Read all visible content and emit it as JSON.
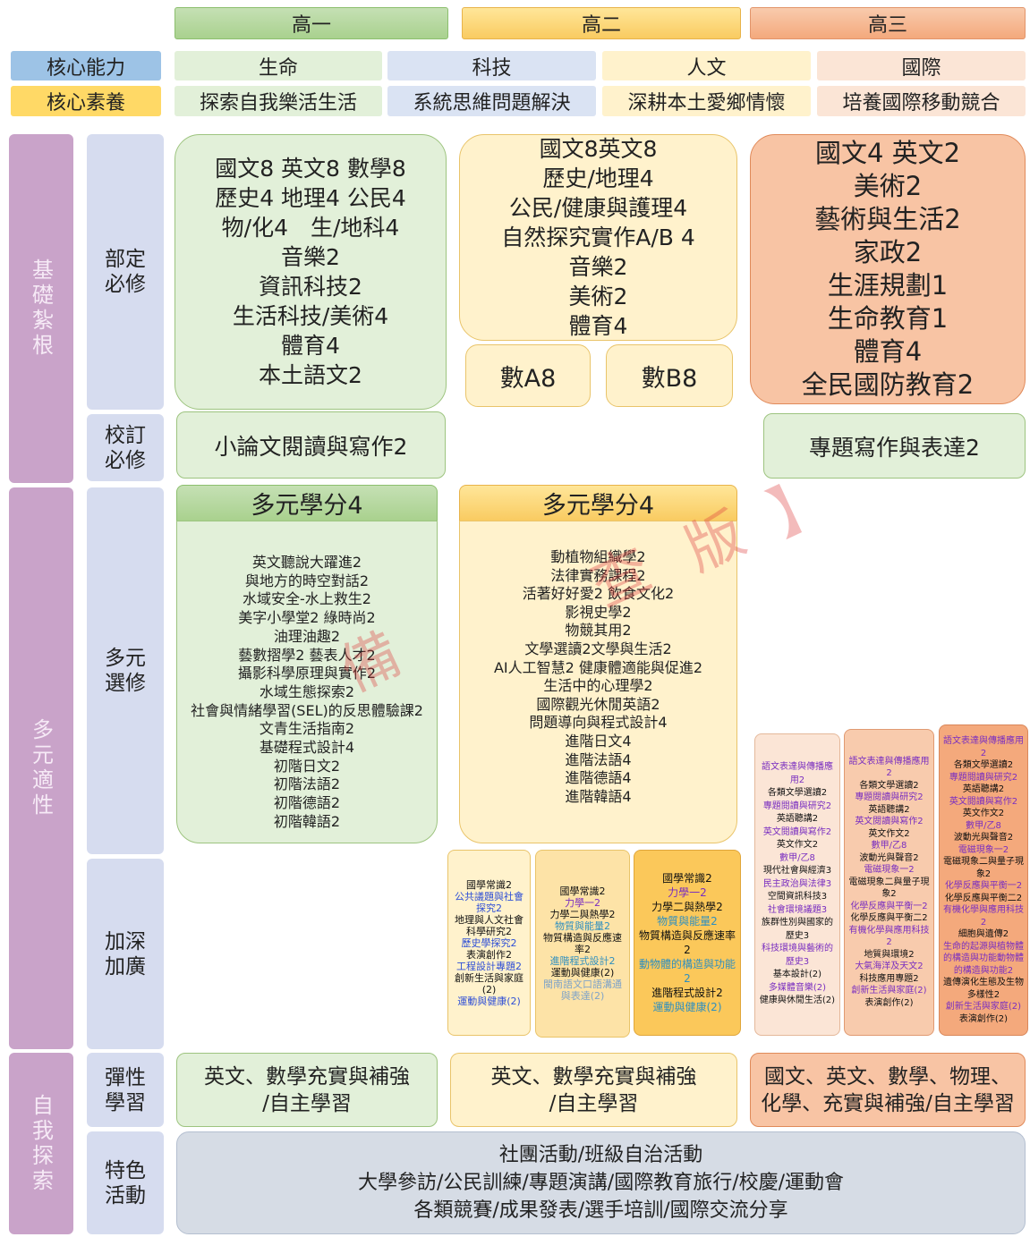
{
  "grades": [
    "高一",
    "高二",
    "高三"
  ],
  "core_competencies": {
    "label": "核心能力",
    "items": [
      "生命",
      "科技",
      "人文",
      "國際"
    ]
  },
  "core_literacy": {
    "label": "核心素養",
    "items": [
      "探索自我樂活生活",
      "系統思維問題解決",
      "深耕本土愛鄉情懷",
      "培養國際移動競合"
    ]
  },
  "sections": [
    "基礎紮根",
    "多元適性",
    "自我探索"
  ],
  "rows": [
    "部定必修",
    "校訂必修",
    "多元選修",
    "加深加廣",
    "彈性學習",
    "特色活動"
  ],
  "required": {
    "grade10": [
      "國文8 英文8 數學8",
      "歷史4 地理4 公民4",
      "物/化4　生/地科4",
      "音樂2",
      "資訊科技2",
      "生活科技/美術4",
      "體育4",
      "本土語文2"
    ],
    "grade11": [
      "國文8英文8",
      "歷史/地理4",
      "公民/健康與護理4",
      "自然探究實作A/B 4",
      "音樂2",
      "美術2",
      "體育4"
    ],
    "grade11_math": [
      "數A8",
      "數B8"
    ],
    "grade12": [
      "國文4 英文2",
      "美術2",
      "藝術與生活2",
      "家政2",
      "生涯規劃1",
      "生命教育1",
      "體育4",
      "全民國防教育2"
    ]
  },
  "school_required": {
    "grade10": "小論文閱讀與寫作2",
    "grade12": "專題寫作與表達2"
  },
  "electives": {
    "grade10": {
      "title": "多元學分4",
      "items": [
        "英文聽說大躍進2",
        "與地方的時空對話2",
        "水域安全-水上救生2",
        "美字小學堂2 綠時尚2",
        "油理油趣2",
        "藝數摺學2 藝表人才2",
        "攝影科學原理與實作2",
        "水域生態探索2",
        "社會與情緒學習(SEL)的反思體驗課2",
        "文青生活指南2",
        "基礎程式設計4",
        "初階日文2",
        "初階法語2",
        "初階德語2",
        "初階韓語2"
      ]
    },
    "grade11": {
      "title": "多元學分4",
      "items": [
        "動植物組織學2",
        "法律實務課程2",
        "活著好好愛2 飲食文化2",
        "影視史學2",
        "物競其用2",
        "文學選讀2文學與生活2",
        "AI人工智慧2 健康體適能與促進2",
        "生活中的心理學2",
        "國際觀光休閒英語2",
        "問題導向與程式設計4",
        "進階日文4",
        "進階法語4",
        "進階德語4",
        "進階韓語4"
      ]
    }
  },
  "advanced": {
    "grade11_a": [
      {
        "text": "國學常識2",
        "color": "#111111"
      },
      {
        "text": "公共議題與社會探究2",
        "color": "#2e4fd6"
      },
      {
        "text": "地理與人文社會科學研究2",
        "color": "#111111"
      },
      {
        "text": "歷史學探究2",
        "color": "#2e4fd6"
      },
      {
        "text": "表演創作2",
        "color": "#111111"
      },
      {
        "text": "工程設計專題2",
        "color": "#2e4fd6"
      },
      {
        "text": "創新生活與家庭(2)",
        "color": "#111111"
      },
      {
        "text": "運動與健康(2)",
        "color": "#2e4fd6"
      }
    ],
    "grade11_b": [
      {
        "text": "國學常識2",
        "color": "#111111"
      },
      {
        "text": "力學一2",
        "color": "#7a2fc0"
      },
      {
        "text": "力學二與熱學2",
        "color": "#111111"
      },
      {
        "text": "物質與能量2",
        "color": "#2f8fbf"
      },
      {
        "text": "物質構造與反應速率2",
        "color": "#111111"
      },
      {
        "text": "進階程式設計2",
        "color": "#2f8fbf"
      },
      {
        "text": "運動與健康(2)",
        "color": "#111111"
      },
      {
        "text": "閩南語文口語溝通與表達(2)",
        "color": "#7fa3c8"
      }
    ],
    "grade11_c": [
      {
        "text": "國學常識2",
        "color": "#111111"
      },
      {
        "text": "力學一2",
        "color": "#7a2fc0"
      },
      {
        "text": "力學二與熱學2",
        "color": "#111111"
      },
      {
        "text": "物質與能量2",
        "color": "#2f8fbf"
      },
      {
        "text": "物質構造與反應速率2",
        "color": "#111111"
      },
      {
        "text": "動物體的構造與功能2",
        "color": "#2f8fbf"
      },
      {
        "text": "進階程式設計2",
        "color": "#111111"
      },
      {
        "text": "運動與健康(2)",
        "color": "#2f8fbf"
      }
    ],
    "grade12_a": [
      {
        "text": "語文表達與傳播應用2",
        "color": "#7a2fc0"
      },
      {
        "text": "各類文學選讀2",
        "color": "#111111"
      },
      {
        "text": "專題閱讀與研究2",
        "color": "#7a2fc0"
      },
      {
        "text": "英語聽講2",
        "color": "#111111"
      },
      {
        "text": "英文閱讀與寫作2",
        "color": "#7a2fc0"
      },
      {
        "text": "英文作文2",
        "color": "#111111"
      },
      {
        "text": "數甲/乙8",
        "color": "#7a2fc0"
      },
      {
        "text": "現代社會與經濟3",
        "color": "#111111"
      },
      {
        "text": "民主政治與法律3",
        "color": "#7a2fc0"
      },
      {
        "text": "空間資訊科技3",
        "color": "#111111"
      },
      {
        "text": "社會環境議題3",
        "color": "#7a2fc0"
      },
      {
        "text": "族群性別與國家的歷史3",
        "color": "#111111"
      },
      {
        "text": "科技環境與藝術的歷史3",
        "color": "#7a2fc0"
      },
      {
        "text": "基本設計(2)",
        "color": "#111111"
      },
      {
        "text": "多媒體音樂(2)",
        "color": "#7a2fc0"
      },
      {
        "text": "健康與休閒生活(2)",
        "color": "#111111"
      }
    ],
    "grade12_b": [
      {
        "text": "語文表達與傳播應用2",
        "color": "#7a2fc0"
      },
      {
        "text": "各類文學選讀2",
        "color": "#111111"
      },
      {
        "text": "專題閱讀與研究2",
        "color": "#7a2fc0"
      },
      {
        "text": "英語聽講2",
        "color": "#111111"
      },
      {
        "text": "英文閱讀與寫作2",
        "color": "#7a2fc0"
      },
      {
        "text": "英文作文2",
        "color": "#111111"
      },
      {
        "text": "數甲/乙8",
        "color": "#7a2fc0"
      },
      {
        "text": "波動光與聲音2",
        "color": "#111111"
      },
      {
        "text": "電磁現象一2",
        "color": "#7a2fc0"
      },
      {
        "text": "電磁現象二與量子現象2",
        "color": "#111111"
      },
      {
        "text": "化學反應與平衡一2",
        "color": "#7a2fc0"
      },
      {
        "text": "化學反應與平衡二2",
        "color": "#111111"
      },
      {
        "text": "有機化學與應用科技2",
        "color": "#7a2fc0"
      },
      {
        "text": "地質與環境2",
        "color": "#111111"
      },
      {
        "text": "大氣海洋及天文2",
        "color": "#7a2fc0"
      },
      {
        "text": "科技應用專題2",
        "color": "#111111"
      },
      {
        "text": "創新生活與家庭(2)",
        "color": "#7a2fc0"
      },
      {
        "text": "表演創作(2)",
        "color": "#111111"
      }
    ],
    "grade12_c": [
      {
        "text": "語文表達與傳播應用2",
        "color": "#7a2fc0"
      },
      {
        "text": "各類文學選讀2",
        "color": "#111111"
      },
      {
        "text": "專題閱讀與研究2",
        "color": "#7a2fc0"
      },
      {
        "text": "英語聽講2",
        "color": "#111111"
      },
      {
        "text": "英文閱讀與寫作2",
        "color": "#7a2fc0"
      },
      {
        "text": "英文作文2",
        "color": "#111111"
      },
      {
        "text": "數甲/乙8",
        "color": "#7a2fc0"
      },
      {
        "text": "波動光與聲音2",
        "color": "#111111"
      },
      {
        "text": "電磁現象一2",
        "color": "#7a2fc0"
      },
      {
        "text": "電磁現象二與量子現象2",
        "color": "#111111"
      },
      {
        "text": "化學反應與平衡一2",
        "color": "#7a2fc0"
      },
      {
        "text": "化學反應與平衡二2",
        "color": "#111111"
      },
      {
        "text": "有機化學與應用科技2",
        "color": "#7a2fc0"
      },
      {
        "text": "細胞與遺傳2",
        "color": "#111111"
      },
      {
        "text": "生命的起源與植物體的構造與功能動物體的構造與功能2",
        "color": "#7a2fc0"
      },
      {
        "text": "遺傳演化生態及生物多樣性2",
        "color": "#111111"
      },
      {
        "text": "創新生活與家庭(2)",
        "color": "#7a2fc0"
      },
      {
        "text": "表演創作(2)",
        "color": "#111111"
      }
    ]
  },
  "flexible": {
    "grade10": [
      "英文、數學充實與補強",
      "/自主學習"
    ],
    "grade11": [
      "英文、數學充實與補強",
      "/自主學習"
    ],
    "grade12": [
      "國文、英文、數學、物理、",
      "化學、充實與補強/自主學習"
    ]
  },
  "activities": [
    "社團活動/班級自治活動",
    "大學參訪/公民訓練/專題演講/國際教育旅行/校慶/運動會",
    "各類競賽/成果發表/選手培訓/國際交流分享"
  ],
  "watermark": [
    "備",
    "查",
    "版",
    "】"
  ]
}
